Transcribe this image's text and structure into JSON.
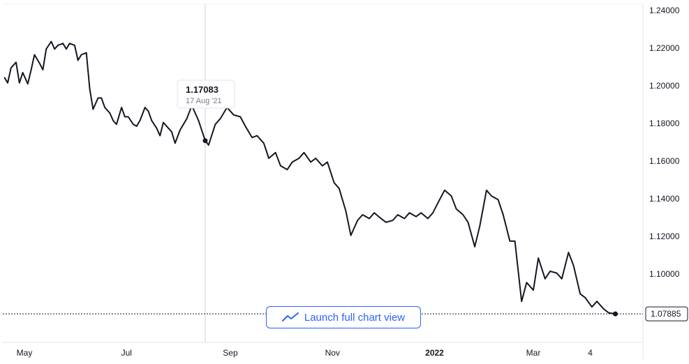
{
  "chart_data": {
    "type": "line",
    "title": "",
    "xlabel": "",
    "ylabel": "",
    "ylim": [
      1.075,
      1.24
    ],
    "y_ticks": [
      1.24,
      1.22,
      1.2,
      1.18,
      1.16,
      1.14,
      1.12,
      1.1
    ],
    "y_tick_labels": [
      "1.24000",
      "1.22000",
      "1.20000",
      "1.18000",
      "1.16000",
      "1.14000",
      "1.12000",
      "1.10000"
    ],
    "x_ticks": [
      {
        "label": "May",
        "date": "2021-05-01",
        "bold": false
      },
      {
        "label": "Jul",
        "date": "2021-07-01",
        "bold": false
      },
      {
        "label": "Sep",
        "date": "2021-09-01",
        "bold": false
      },
      {
        "label": "Nov",
        "date": "2021-11-01",
        "bold": false
      },
      {
        "label": "2022",
        "date": "2022-01-01",
        "bold": true
      },
      {
        "label": "Mar",
        "date": "2022-03-01",
        "bold": false
      },
      {
        "label": "4",
        "date": "2022-04-04",
        "bold": false
      }
    ],
    "grid": false,
    "legend": "none",
    "line_color": "#131722",
    "series": [
      {
        "x": [
          "2021-04-19",
          "2021-04-21",
          "2021-04-23",
          "2021-04-26",
          "2021-04-28",
          "2021-04-30",
          "2021-05-03",
          "2021-05-05",
          "2021-05-07",
          "2021-05-10",
          "2021-05-12",
          "2021-05-14",
          "2021-05-17",
          "2021-05-19",
          "2021-05-21",
          "2021-05-24",
          "2021-05-26",
          "2021-05-28",
          "2021-05-31",
          "2021-06-02",
          "2021-06-04",
          "2021-06-07",
          "2021-06-09",
          "2021-06-11",
          "2021-06-14",
          "2021-06-16",
          "2021-06-18",
          "2021-06-21",
          "2021-06-23",
          "2021-06-25",
          "2021-06-28",
          "2021-06-30",
          "2021-07-02",
          "2021-07-05",
          "2021-07-07",
          "2021-07-09",
          "2021-07-12",
          "2021-07-14",
          "2021-07-16",
          "2021-07-19",
          "2021-07-21",
          "2021-07-23",
          "2021-07-26",
          "2021-07-28",
          "2021-07-30",
          "2021-08-02",
          "2021-08-04",
          "2021-08-06",
          "2021-08-09",
          "2021-08-11",
          "2021-08-13",
          "2021-08-17",
          "2021-08-19",
          "2021-08-23",
          "2021-08-26",
          "2021-08-30",
          "2021-09-03",
          "2021-09-07",
          "2021-09-10",
          "2021-09-14",
          "2021-09-17",
          "2021-09-21",
          "2021-09-24",
          "2021-09-28",
          "2021-10-01",
          "2021-10-05",
          "2021-10-08",
          "2021-10-12",
          "2021-10-15",
          "2021-10-19",
          "2021-10-22",
          "2021-10-26",
          "2021-10-29",
          "2021-11-02",
          "2021-11-05",
          "2021-11-09",
          "2021-11-12",
          "2021-11-16",
          "2021-11-19",
          "2021-11-23",
          "2021-11-26",
          "2021-11-30",
          "2021-12-03",
          "2021-12-07",
          "2021-12-10",
          "2021-12-14",
          "2021-12-17",
          "2021-12-21",
          "2021-12-24",
          "2021-12-28",
          "2021-12-31",
          "2022-01-04",
          "2022-01-07",
          "2022-01-11",
          "2022-01-14",
          "2022-01-18",
          "2022-01-21",
          "2022-01-25",
          "2022-01-28",
          "2022-02-01",
          "2022-02-04",
          "2022-02-08",
          "2022-02-11",
          "2022-02-15",
          "2022-02-18",
          "2022-02-22",
          "2022-02-25",
          "2022-03-01",
          "2022-03-04",
          "2022-03-08",
          "2022-03-11",
          "2022-03-15",
          "2022-03-18",
          "2022-03-22",
          "2022-03-25",
          "2022-03-29",
          "2022-04-01",
          "2022-04-05",
          "2022-04-08",
          "2022-04-12",
          "2022-04-15",
          "2022-04-19"
        ],
        "y": [
          1.2045,
          1.2015,
          1.2095,
          1.2125,
          1.2015,
          1.207,
          1.201,
          1.2085,
          1.2165,
          1.212,
          1.2085,
          1.2195,
          1.2235,
          1.2195,
          1.2215,
          1.2225,
          1.2195,
          1.2225,
          1.2215,
          1.2135,
          1.2165,
          1.2175,
          1.1985,
          1.1875,
          1.1935,
          1.1935,
          1.1885,
          1.1855,
          1.1815,
          1.1795,
          1.1885,
          1.1835,
          1.1835,
          1.1795,
          1.1785,
          1.1815,
          1.1885,
          1.1865,
          1.1815,
          1.1775,
          1.1735,
          1.1805,
          1.1775,
          1.1755,
          1.1695,
          1.1765,
          1.1795,
          1.1825,
          1.1895,
          1.1855,
          1.1815,
          1.1708,
          1.1685,
          1.1795,
          1.1825,
          1.1885,
          1.1845,
          1.1835,
          1.1785,
          1.1725,
          1.1735,
          1.1695,
          1.1615,
          1.1645,
          1.1575,
          1.1555,
          1.1595,
          1.1615,
          1.1645,
          1.1595,
          1.1615,
          1.1575,
          1.1595,
          1.1485,
          1.1455,
          1.1335,
          1.1205,
          1.1285,
          1.1315,
          1.1295,
          1.1325,
          1.1295,
          1.1275,
          1.1285,
          1.1315,
          1.1295,
          1.1325,
          1.1305,
          1.1325,
          1.1295,
          1.1325,
          1.1395,
          1.1445,
          1.1415,
          1.1345,
          1.1315,
          1.1275,
          1.1145,
          1.1255,
          1.1445,
          1.1415,
          1.1395,
          1.1315,
          1.1175,
          1.1175,
          1.0855,
          1.0955,
          1.0915,
          1.1085,
          1.0975,
          1.1015,
          1.1005,
          1.0975,
          1.1115,
          1.1045,
          1.0895,
          1.0875,
          1.0825,
          1.0855,
          1.0815,
          1.0794,
          1.07885
        ]
      }
    ],
    "tooltip": {
      "value": "1.17083",
      "date": "17 Aug '21",
      "at": "2021-08-17"
    },
    "last_price": {
      "value": 1.07885,
      "label": "1.07885"
    }
  },
  "launch_button": {
    "label": "Launch full chart view",
    "icon": "trend-line-icon"
  },
  "colors": {
    "accent": "#2962ff",
    "line": "#131722",
    "axis": "#e0e3eb",
    "crosshair": "#b2b5be"
  }
}
